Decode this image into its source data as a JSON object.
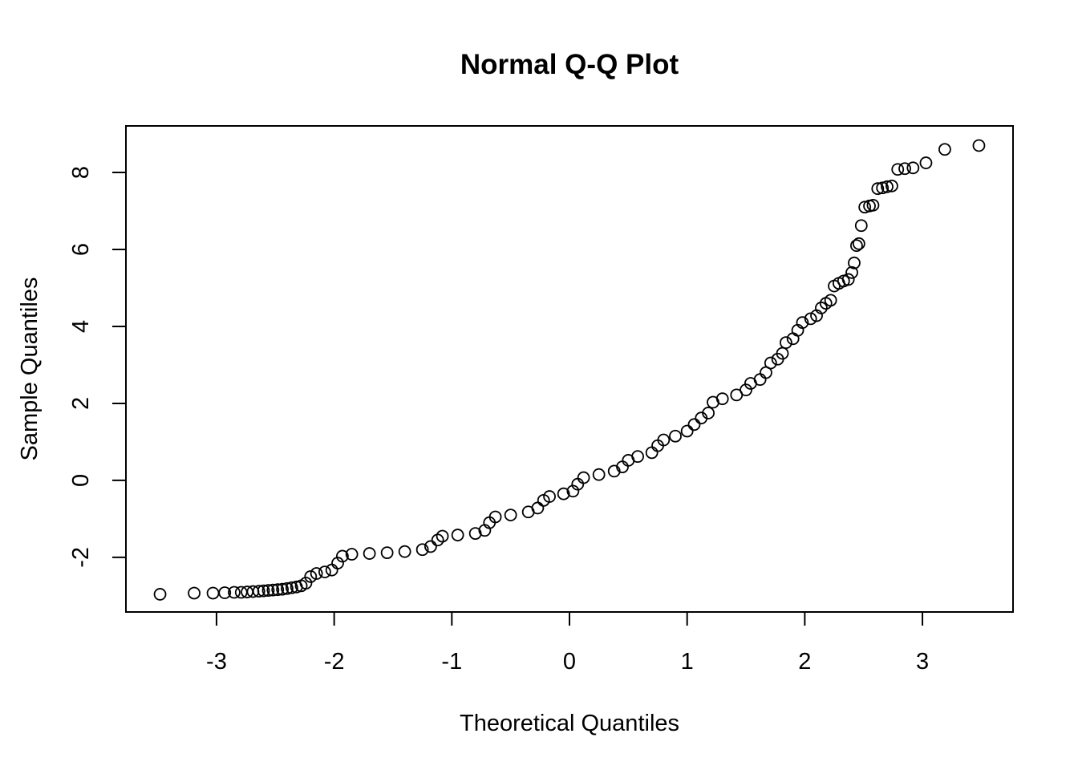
{
  "chart_data": {
    "type": "scatter",
    "title": "Normal Q-Q Plot",
    "x_label": "Theoretical Quantiles",
    "y_label": "Sample Quantiles",
    "color": "#000000",
    "x": [
      -3.48,
      -3.19,
      -3.03,
      -2.93,
      -2.85,
      -2.79,
      -2.74,
      -2.69,
      -2.64,
      -2.6,
      -2.56,
      -2.52,
      -2.48,
      -2.44,
      -2.4,
      -2.36,
      -2.32,
      -2.28,
      -2.24,
      -2.2,
      -2.15,
      -2.08,
      -2.02,
      -1.97,
      -1.93,
      -1.85,
      -1.7,
      -1.55,
      -1.4,
      -1.25,
      -1.18,
      -1.12,
      -1.08,
      -0.95,
      -0.8,
      -0.72,
      -0.68,
      -0.63,
      -0.5,
      -0.35,
      -0.27,
      -0.22,
      -0.17,
      -0.05,
      0.03,
      0.07,
      0.12,
      0.25,
      0.38,
      0.45,
      0.5,
      0.58,
      0.7,
      0.75,
      0.8,
      0.9,
      1.0,
      1.06,
      1.12,
      1.18,
      1.22,
      1.3,
      1.42,
      1.5,
      1.54,
      1.62,
      1.67,
      1.71,
      1.77,
      1.81,
      1.84,
      1.9,
      1.94,
      1.98,
      2.05,
      2.1,
      2.14,
      2.18,
      2.22,
      2.25,
      2.29,
      2.33,
      2.37,
      2.4,
      2.42,
      2.44,
      2.46,
      2.48,
      2.51,
      2.55,
      2.58,
      2.62,
      2.66,
      2.7,
      2.74,
      2.79,
      2.85,
      2.92,
      3.03,
      3.19,
      3.48
    ],
    "values": [
      -2.96,
      -2.93,
      -2.93,
      -2.92,
      -2.91,
      -2.91,
      -2.9,
      -2.89,
      -2.88,
      -2.87,
      -2.86,
      -2.85,
      -2.84,
      -2.83,
      -2.81,
      -2.79,
      -2.77,
      -2.74,
      -2.67,
      -2.5,
      -2.42,
      -2.38,
      -2.33,
      -2.15,
      -1.97,
      -1.92,
      -1.9,
      -1.88,
      -1.85,
      -1.8,
      -1.72,
      -1.55,
      -1.45,
      -1.42,
      -1.38,
      -1.3,
      -1.1,
      -0.95,
      -0.9,
      -0.82,
      -0.72,
      -0.52,
      -0.42,
      -0.35,
      -0.28,
      -0.1,
      0.07,
      0.15,
      0.24,
      0.35,
      0.52,
      0.62,
      0.72,
      0.9,
      1.05,
      1.15,
      1.28,
      1.45,
      1.62,
      1.75,
      2.03,
      2.12,
      2.22,
      2.35,
      2.52,
      2.62,
      2.8,
      3.05,
      3.15,
      3.3,
      3.58,
      3.68,
      3.9,
      4.1,
      4.2,
      4.28,
      4.48,
      4.6,
      4.68,
      5.05,
      5.12,
      5.18,
      5.22,
      5.4,
      5.65,
      6.1,
      6.15,
      6.62,
      7.1,
      7.13,
      7.15,
      7.58,
      7.6,
      7.63,
      7.65,
      8.08,
      8.1,
      8.12,
      8.25,
      8.6,
      8.7
    ],
    "xlim": [
      -3.77,
      3.77
    ],
    "ylim": [
      -3.42,
      9.21
    ],
    "xticks": [
      -3,
      -2,
      -1,
      0,
      1,
      2,
      3
    ],
    "yticks": [
      -2,
      0,
      2,
      4,
      6,
      8
    ]
  }
}
